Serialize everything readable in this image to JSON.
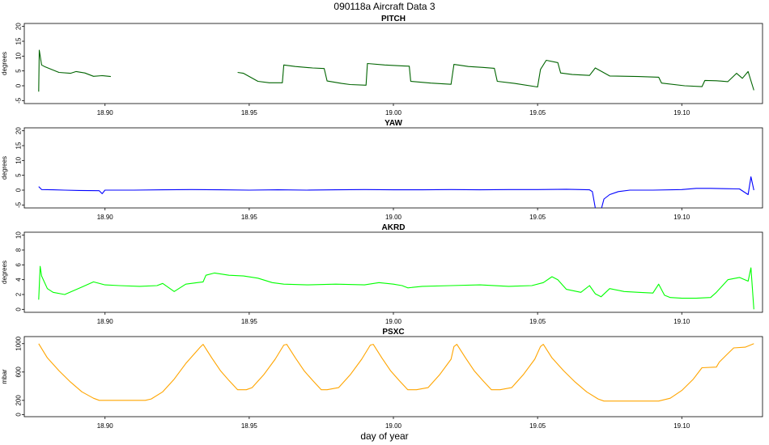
{
  "title": "090118a   Aircraft Data 3",
  "xlabel": "day of year",
  "chart_data": [
    {
      "type": "line",
      "title": "PITCH",
      "ylabel": "degrees",
      "color": "#006400",
      "xlim": [
        18.872,
        19.128
      ],
      "ylim": [
        -6,
        21
      ],
      "yticks": [
        -5,
        0,
        5,
        10,
        15,
        20
      ],
      "xticks": [
        18.9,
        18.95,
        19.0,
        19.05,
        19.1
      ],
      "xtick_labels": [
        "18.90",
        "18.95",
        "19.00",
        "19.05",
        "19.10"
      ],
      "series": [
        {
          "x": [
            18.877,
            18.8772,
            18.878,
            18.879,
            18.884,
            18.888,
            18.89,
            18.893,
            18.896,
            18.899,
            18.902,
            null,
            18.946,
            18.948,
            18.953,
            18.957,
            18.9615,
            18.962,
            18.966,
            18.972,
            18.976,
            18.977,
            18.982,
            18.985,
            18.9905,
            18.991,
            18.997,
            19.003,
            19.0055,
            19.006,
            19.013,
            19.02,
            19.021,
            19.026,
            19.031,
            19.035,
            19.036,
            19.042,
            19.05,
            19.051,
            19.053,
            19.057,
            19.058,
            19.062,
            19.068,
            19.07,
            19.075,
            19.085,
            19.092,
            19.093,
            19.101,
            19.107,
            19.108,
            19.112,
            19.116,
            19.119,
            19.121,
            19.123,
            19.125
          ],
          "y": [
            -2,
            12,
            7,
            6.5,
            4.5,
            4.2,
            4.8,
            4.3,
            3.2,
            3.4,
            3.1,
            null,
            4.5,
            4.2,
            1.5,
            1,
            1,
            7,
            6.5,
            6,
            5.8,
            1.6,
            0.8,
            0.4,
            0.2,
            7.5,
            7,
            6.7,
            6.6,
            1.5,
            0.9,
            0.5,
            7.2,
            6.5,
            6.2,
            5.9,
            1.5,
            0.8,
            -0.4,
            5.5,
            8.6,
            7.8,
            4.3,
            3.8,
            3.5,
            6,
            3.3,
            3.1,
            2.9,
            0.9,
            0,
            -0.3,
            1.8,
            1.7,
            1.4,
            4.2,
            2.5,
            4.8,
            -1.5
          ]
        }
      ]
    },
    {
      "type": "line",
      "title": "YAW",
      "ylabel": "degrees",
      "color": "#0000ff",
      "xlim": [
        18.872,
        19.128
      ],
      "ylim": [
        -6,
        21
      ],
      "yticks": [
        -5,
        0,
        5,
        10,
        15,
        20
      ],
      "xticks": [
        18.9,
        18.95,
        19.0,
        19.05,
        19.1
      ],
      "xtick_labels": [
        "18.90",
        "18.95",
        "19.00",
        "19.05",
        "19.10"
      ],
      "series": [
        {
          "x": [
            18.877,
            18.878,
            18.882,
            18.886,
            18.891,
            18.898,
            18.899,
            18.9,
            18.91,
            18.92,
            18.93,
            18.94,
            18.95,
            18.96,
            18.97,
            18.98,
            18.99,
            19.0,
            19.01,
            19.02,
            19.03,
            19.04,
            19.05,
            19.06,
            19.068,
            19.069,
            19.07,
            null,
            19.0722,
            19.073,
            19.075,
            19.078,
            19.082,
            19.09,
            19.1,
            19.105,
            19.11,
            19.115,
            19.12,
            19.123,
            19.124,
            19.125
          ],
          "y": [
            1.2,
            0.2,
            0.1,
            0,
            -0.1,
            -0.2,
            -1.2,
            0,
            0,
            0.1,
            0.2,
            0.1,
            0,
            0.1,
            0,
            0.1,
            0.2,
            0.1,
            0.1,
            0.2,
            0.1,
            0.2,
            0.2,
            0.3,
            0.1,
            -0.5,
            -6,
            null,
            -6,
            -3,
            -1.5,
            -0.5,
            0,
            0,
            0.2,
            0.6,
            0.6,
            0.5,
            0.4,
            -1.5,
            4.5,
            0
          ]
        }
      ]
    },
    {
      "type": "line",
      "title": "AKRD",
      "ylabel": "degrees",
      "color": "#00ff00",
      "xlim": [
        18.872,
        19.128
      ],
      "ylim": [
        -0.4,
        10.4
      ],
      "yticks": [
        0,
        2,
        4,
        6,
        8,
        10
      ],
      "xticks": [
        18.9,
        18.95,
        19.0,
        19.05,
        19.1
      ],
      "xtick_labels": [
        "18.90",
        "18.95",
        "19.00",
        "19.05",
        "19.10"
      ],
      "series": [
        {
          "x": [
            18.877,
            18.8775,
            18.878,
            18.88,
            18.882,
            18.886,
            18.892,
            18.896,
            18.9,
            18.905,
            18.912,
            18.918,
            18.92,
            18.924,
            18.928,
            18.932,
            18.934,
            18.935,
            18.938,
            18.943,
            18.948,
            18.953,
            18.958,
            18.962,
            18.97,
            18.98,
            18.99,
            18.995,
            19.0,
            19.003,
            19.005,
            19.01,
            19.02,
            19.03,
            19.04,
            19.048,
            19.052,
            19.055,
            19.057,
            19.06,
            19.065,
            19.068,
            19.07,
            19.072,
            19.075,
            19.08,
            19.085,
            19.09,
            19.092,
            19.094,
            19.096,
            19.1,
            19.105,
            19.11,
            19.112,
            19.116,
            19.12,
            19.123,
            19.124,
            19.125
          ],
          "y": [
            1.3,
            5.8,
            4.5,
            2.8,
            2.3,
            2,
            3,
            3.7,
            3.3,
            3.2,
            3.1,
            3.2,
            3.5,
            2.4,
            3.4,
            3.6,
            3.7,
            4.6,
            4.9,
            4.6,
            4.5,
            4.2,
            3.6,
            3.4,
            3.3,
            3.4,
            3.3,
            3.6,
            3.4,
            3.2,
            2.9,
            3.1,
            3.2,
            3.3,
            3.1,
            3.2,
            3.6,
            4.4,
            4,
            2.7,
            2.3,
            3.2,
            2.1,
            1.7,
            2.8,
            2.4,
            2.3,
            2.2,
            3.4,
            1.9,
            1.6,
            1.5,
            1.5,
            1.6,
            2.3,
            4,
            4.3,
            3.8,
            5.6,
            0
          ]
        }
      ]
    },
    {
      "type": "line",
      "title": "PSXC",
      "ylabel": "mbar",
      "color": "#ffa500",
      "xlim": [
        18.872,
        19.128
      ],
      "ylim": [
        -30,
        1100
      ],
      "yticks": [
        0,
        200,
        600,
        1000
      ],
      "xticks": [
        18.9,
        18.95,
        19.0,
        19.05,
        19.1
      ],
      "xtick_labels": [
        "18.90",
        "18.95",
        "19.00",
        "19.05",
        "19.10"
      ],
      "series": [
        {
          "x": [
            18.877,
            18.88,
            18.884,
            18.888,
            18.892,
            18.896,
            18.898,
            18.914,
            18.916,
            18.92,
            18.924,
            18.928,
            18.933,
            18.934,
            18.937,
            18.94,
            18.943,
            18.946,
            18.949,
            18.951,
            18.955,
            18.959,
            18.962,
            18.963,
            18.966,
            18.969,
            18.972,
            18.975,
            18.977,
            18.981,
            18.985,
            18.989,
            18.992,
            18.993,
            18.996,
            18.999,
            19.002,
            19.005,
            19.008,
            19.012,
            19.016,
            19.02,
            19.021,
            19.022,
            19.025,
            19.028,
            19.031,
            19.034,
            19.037,
            19.041,
            19.045,
            19.049,
            19.051,
            19.052,
            19.055,
            19.059,
            19.063,
            19.067,
            19.071,
            19.073,
            19.092,
            19.096,
            19.1,
            19.104,
            19.107,
            19.112,
            19.113,
            19.116,
            19.118,
            19.122,
            19.125
          ],
          "y": [
            1000,
            800,
            620,
            460,
            320,
            230,
            200,
            200,
            220,
            320,
            500,
            720,
            950,
            990,
            800,
            620,
            480,
            350,
            350,
            380,
            560,
            780,
            980,
            990,
            800,
            620,
            480,
            350,
            350,
            380,
            560,
            780,
            980,
            990,
            800,
            620,
            480,
            350,
            350,
            380,
            560,
            780,
            960,
            990,
            800,
            620,
            480,
            350,
            350,
            380,
            560,
            780,
            960,
            990,
            800,
            620,
            460,
            320,
            220,
            190,
            190,
            230,
            340,
            500,
            660,
            670,
            740,
            860,
            940,
            950,
            1000
          ]
        }
      ]
    }
  ]
}
